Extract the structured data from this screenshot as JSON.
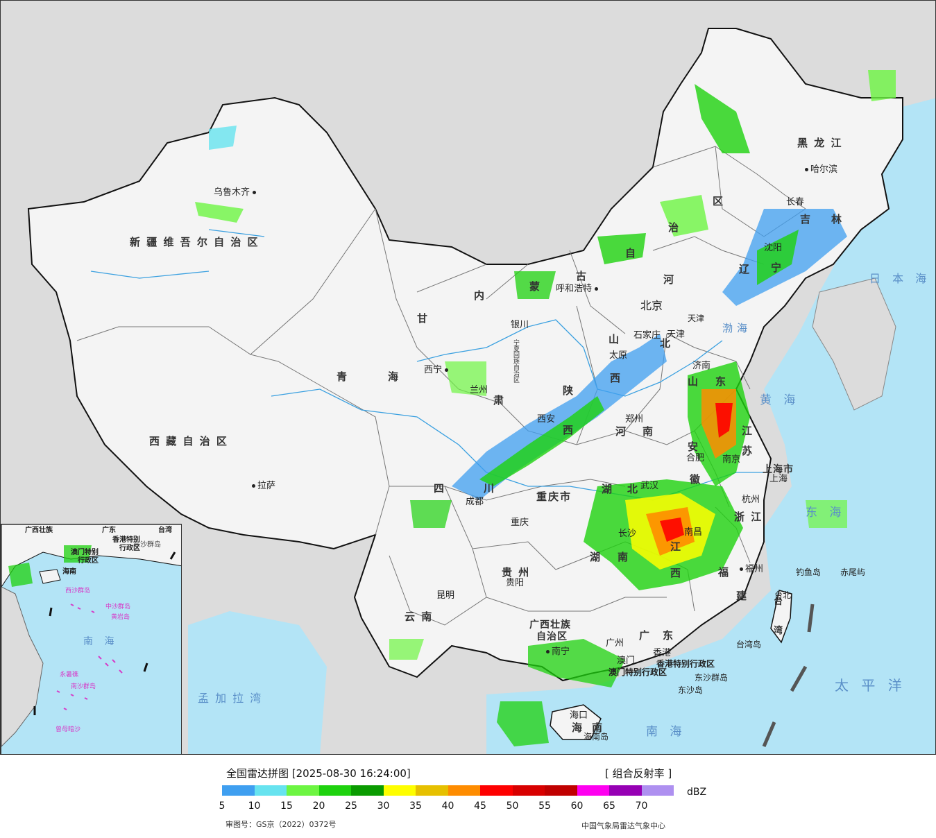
{
  "legend": {
    "title": "全国雷达拼图 [2025-08-30 16:24:00]",
    "product": "[ 组合反射率 ]",
    "unit": "dBZ",
    "ticks": [
      "5",
      "10",
      "15",
      "20",
      "25",
      "30",
      "35",
      "40",
      "45",
      "50",
      "55",
      "60",
      "65",
      "70"
    ],
    "colors": [
      "#3f9ff0",
      "#67e3ef",
      "#6df542",
      "#1ed20e",
      "#0a9b00",
      "#fefe00",
      "#e6c000",
      "#fe8c00",
      "#fe0000",
      "#d80000",
      "#c00000",
      "#fe00f0",
      "#9600b4",
      "#ae90f0"
    ],
    "review_no": "审图号：GS京（2022）0372号",
    "organization": "中国气象局雷达气象中心"
  },
  "map": {
    "colors": {
      "land": "#f4f4f4",
      "outside": "#dcdcdc",
      "sea": "#b3e4f6",
      "border": "#111111",
      "province_line": "#777777",
      "river": "#3aa0e0"
    },
    "provinces": [
      "新疆维吾尔自治区",
      "西藏自治区",
      "青海",
      "甘肃",
      "内蒙古自治区",
      "黑龙江",
      "吉林",
      "辽宁",
      "河北",
      "山西",
      "陕西",
      "宁夏回族自治区",
      "四川",
      "重庆市",
      "贵州",
      "云南",
      "广西壮族自治区",
      "广东",
      "海南",
      "湖南",
      "湖北",
      "河南",
      "山东",
      "安徽",
      "江苏",
      "浙江",
      "江西",
      "福建",
      "上海市",
      "天津市",
      "北京",
      "香港特别行政区",
      "澳门特别行政区",
      "台湾"
    ],
    "province_labels": {
      "xinjiang": "新 疆 维 吾 尔 自 治 区",
      "xizang": "西 藏 自 治 区",
      "qinghai_a": "青",
      "qinghai_b": "海",
      "gansu_a": "甘",
      "gansu_b": "肃",
      "neimeng_a": "内",
      "neimeng_b": "蒙",
      "neimeng_c": "古",
      "neimeng_d": "自",
      "neimeng_e": "治",
      "neimeng_f": "区",
      "heilongjiang": "黑 龙 江",
      "jilin_a": "吉",
      "jilin_b": "林",
      "liaoning_a": "辽",
      "liaoning_b": "宁",
      "hebei_a": "河",
      "hebei_b": "北",
      "shanxi_a": "山",
      "shanxi_b": "西",
      "shaanxi_a": "陕",
      "shaanxi_b": "西",
      "ningxia": "宁夏回族自治区",
      "sichuan_a": "四",
      "sichuan_b": "川",
      "chongqing": "重庆市",
      "guizhou": "贵 州",
      "yunnan": "云 南",
      "guangxi_a": "广西壮族",
      "guangxi_b": "自治区",
      "guangdong_a": "广",
      "guangdong_b": "东",
      "hainan_a": "海",
      "hainan_b": "南",
      "hunan_a": "湖",
      "hunan_b": "南",
      "hubei_a": "湖",
      "hubei_b": "北",
      "henan_a": "河",
      "henan_b": "南",
      "shandong_a": "山",
      "shandong_b": "东",
      "anhui_a": "安",
      "anhui_b": "徽",
      "jiangsu_a": "江",
      "jiangsu_b": "苏",
      "zhejiang": "浙 江",
      "jiangxi_a": "江",
      "jiangxi_b": "西",
      "fujian_a": "福",
      "fujian_b": "建",
      "shanghai": "上海市",
      "tianjin": "天津",
      "beijing": "北京",
      "hongkong": "香港特别行政区",
      "macau": "澳门特别行政区",
      "taiwan_a": "台",
      "taiwan_b": "湾"
    },
    "cities": {
      "urumqi": "乌鲁木齐",
      "lhasa": "拉萨",
      "xining": "西宁",
      "lanzhou": "兰州",
      "yinchuan": "银川",
      "hohhot": "呼和浩特",
      "harbin": "哈尔滨",
      "changchun": "长春",
      "shenyang": "沈阳",
      "beijing_cap": "北京",
      "tianjin_c": "天津",
      "shijiazhuang": "石家庄",
      "taiyuan": "太原",
      "xian": "西安",
      "zhengzhou": "郑州",
      "jinan": "济南",
      "hefei": "合肥",
      "nanjing": "南京",
      "shanghai_c": "上海",
      "hangzhou": "杭州",
      "wuhan": "武汉",
      "changsha": "长沙",
      "nanchang": "南昌",
      "fuzhou": "福州",
      "chengdu": "成都",
      "chongqing_c": "重庆",
      "guiyang": "贵阳",
      "kunming": "昆明",
      "nanning": "南宁",
      "guangzhou": "广州",
      "hongkong_c": "香港",
      "macau_c": "澳门",
      "haikou": "海口",
      "taipei": "台北",
      "dongsha": "东沙群岛",
      "dongsha_dao": "东沙岛",
      "diaoyu": "钓鱼岛",
      "chiwei": "赤尾屿",
      "taiwan_dao": "台湾岛",
      "hainan_dao": "海南岛"
    },
    "seas": {
      "bohai": "渤海",
      "huanghai": "黄 海",
      "donghai": "东 海",
      "nanhai": "南 海",
      "riben": "日 本 海",
      "taiping": "太 平 洋",
      "mengjiala": "孟 加 拉 湾"
    },
    "inset": {
      "nanhai": "南 海",
      "labels": [
        "广西壮族",
        "广东",
        "香港特别",
        "行政区",
        "东沙群岛",
        "澳门特别",
        "行政区",
        "海南",
        "西沙群岛",
        "中沙群岛",
        "黄岩岛",
        "南沙群岛",
        "曾母暗沙",
        "永暑礁",
        "台湾"
      ]
    }
  }
}
